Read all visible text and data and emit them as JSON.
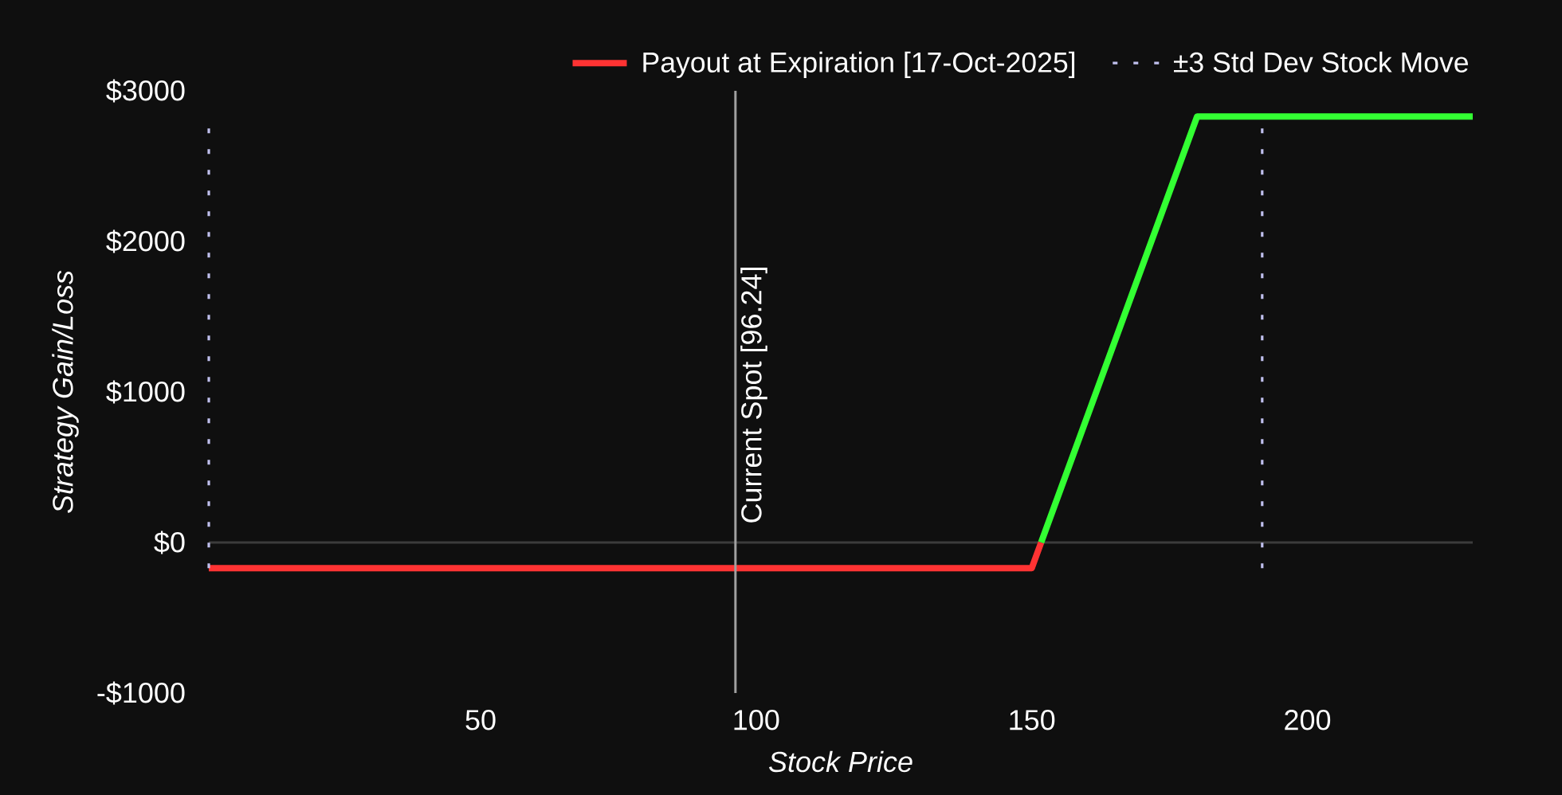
{
  "chart_data": {
    "type": "line",
    "xlabel": "Stock Price",
    "ylabel": "Strategy Gain/Loss",
    "series": [
      {
        "name": "Payout at Expiration [17-Oct-2025]",
        "color": "#ff3333",
        "x": [
          0.7,
          150,
          151.7
        ],
        "values": [
          -170,
          -170,
          0
        ]
      },
      {
        "color": "#33ff33",
        "x": [
          151.7,
          180,
          230
        ],
        "values": [
          0,
          2830,
          2830
        ]
      }
    ],
    "xlim": [
      0.7,
      230
    ],
    "xticks": [
      50,
      100,
      150,
      200
    ],
    "ylim": [
      -1000,
      3000
    ],
    "yticks": [
      {
        "value": -1000,
        "label": "-$1000"
      },
      {
        "value": 0,
        "label": "$0"
      },
      {
        "value": 1000,
        "label": "$1000"
      },
      {
        "value": 2000,
        "label": "$2000"
      },
      {
        "value": 3000,
        "label": "$3000"
      }
    ],
    "ref_lines": [
      {
        "axis": "y",
        "value": 0,
        "color": "#3c3c3c",
        "line_style": "solid"
      },
      {
        "axis": "x",
        "value": 96.24,
        "label": "Current Spot [96.24]",
        "color": "#a0a0a0",
        "line_style": "solid"
      },
      {
        "axis": "x",
        "value": 0.7,
        "label": "±3 Std Dev Stock Move",
        "color": "#c0c0ee",
        "line_style": "dotted"
      },
      {
        "axis": "x",
        "value": 191.8,
        "color": "#c0c0ee",
        "line_style": "dotted"
      }
    ],
    "legend": "top right",
    "marker": "none",
    "line_style": "solid"
  }
}
